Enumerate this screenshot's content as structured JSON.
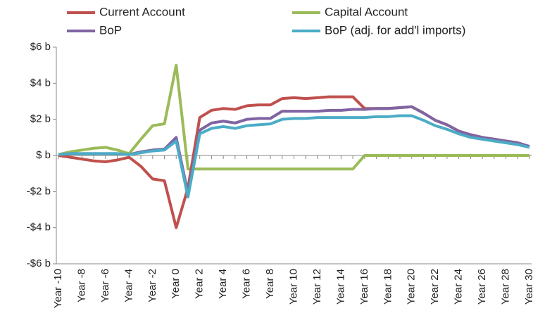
{
  "chart_data": {
    "type": "line",
    "categories": [
      "Year -10",
      null,
      "Year -8",
      null,
      "Year -6",
      null,
      "Year -4",
      null,
      "Year -2",
      null,
      "Year 0",
      null,
      "Year 2",
      null,
      "Year 4",
      null,
      "Year 6",
      null,
      "Year 8",
      null,
      "Year 10",
      null,
      "Year 12",
      null,
      "Year 14",
      null,
      "Year 16",
      null,
      "Year 18",
      null,
      "Year 20",
      null,
      "Year 22",
      null,
      "Year 24",
      null,
      "Year 26",
      null,
      "Year 28",
      null,
      "Year 30"
    ],
    "series": [
      {
        "name": "Current Account",
        "color": "#c0504d",
        "values": [
          0,
          -0.1,
          -0.2,
          -0.3,
          -0.35,
          -0.25,
          -0.1,
          -0.6,
          -1.3,
          -1.4,
          -4.0,
          -1.8,
          2.1,
          2.5,
          2.6,
          2.55,
          2.75,
          2.8,
          2.8,
          3.15,
          3.2,
          3.15,
          3.2,
          3.25,
          3.25,
          3.25,
          2.6,
          2.6,
          2.6,
          2.65,
          2.7,
          2.35,
          1.95,
          1.7,
          1.35,
          1.15,
          1.0,
          0.9,
          0.8,
          0.7,
          0.5
        ]
      },
      {
        "name": "Capital Account",
        "color": "#9bbb59",
        "values": [
          0.05,
          0.2,
          0.3,
          0.4,
          0.45,
          0.3,
          0.1,
          0.9,
          1.65,
          1.75,
          5.0,
          -0.75,
          -0.75,
          -0.75,
          -0.75,
          -0.75,
          -0.75,
          -0.75,
          -0.75,
          -0.75,
          -0.75,
          -0.75,
          -0.75,
          -0.75,
          -0.75,
          -0.75,
          0,
          0,
          0,
          0,
          0,
          0,
          0,
          0,
          0,
          0,
          0,
          0,
          0,
          0,
          0
        ]
      },
      {
        "name": "BoP",
        "color": "#8064a2",
        "values": [
          0.05,
          0.1,
          0.1,
          0.1,
          0.1,
          0.1,
          0.05,
          0.2,
          0.3,
          0.35,
          1.0,
          -2.1,
          1.4,
          1.8,
          1.9,
          1.8,
          2.0,
          2.05,
          2.05,
          2.45,
          2.45,
          2.45,
          2.45,
          2.5,
          2.5,
          2.55,
          2.55,
          2.6,
          2.6,
          2.65,
          2.7,
          2.35,
          1.95,
          1.7,
          1.35,
          1.15,
          1.0,
          0.9,
          0.8,
          0.7,
          0.5
        ]
      },
      {
        "name": "BoP (adj. for add'l imports)",
        "color": "#4bacc6",
        "values": [
          0.05,
          0.1,
          0.1,
          0.1,
          0.1,
          0.1,
          0.05,
          0.15,
          0.25,
          0.3,
          0.8,
          -2.3,
          1.2,
          1.5,
          1.6,
          1.5,
          1.65,
          1.7,
          1.75,
          2.0,
          2.05,
          2.05,
          2.1,
          2.1,
          2.1,
          2.1,
          2.1,
          2.15,
          2.15,
          2.2,
          2.2,
          1.95,
          1.65,
          1.45,
          1.2,
          1.0,
          0.9,
          0.8,
          0.7,
          0.6,
          0.45
        ]
      }
    ],
    "ylim": [
      -6,
      6
    ],
    "yticks": [
      {
        "value": -6,
        "label": "-$6 b"
      },
      {
        "value": -4,
        "label": "-$4 b"
      },
      {
        "value": -2,
        "label": "-$2 b"
      },
      {
        "value": 0,
        "label": "$ b"
      },
      {
        "value": 2,
        "label": "$2 b"
      },
      {
        "value": 4,
        "label": "$4 b"
      },
      {
        "value": 6,
        "label": "$6 b"
      }
    ],
    "grid": false
  }
}
